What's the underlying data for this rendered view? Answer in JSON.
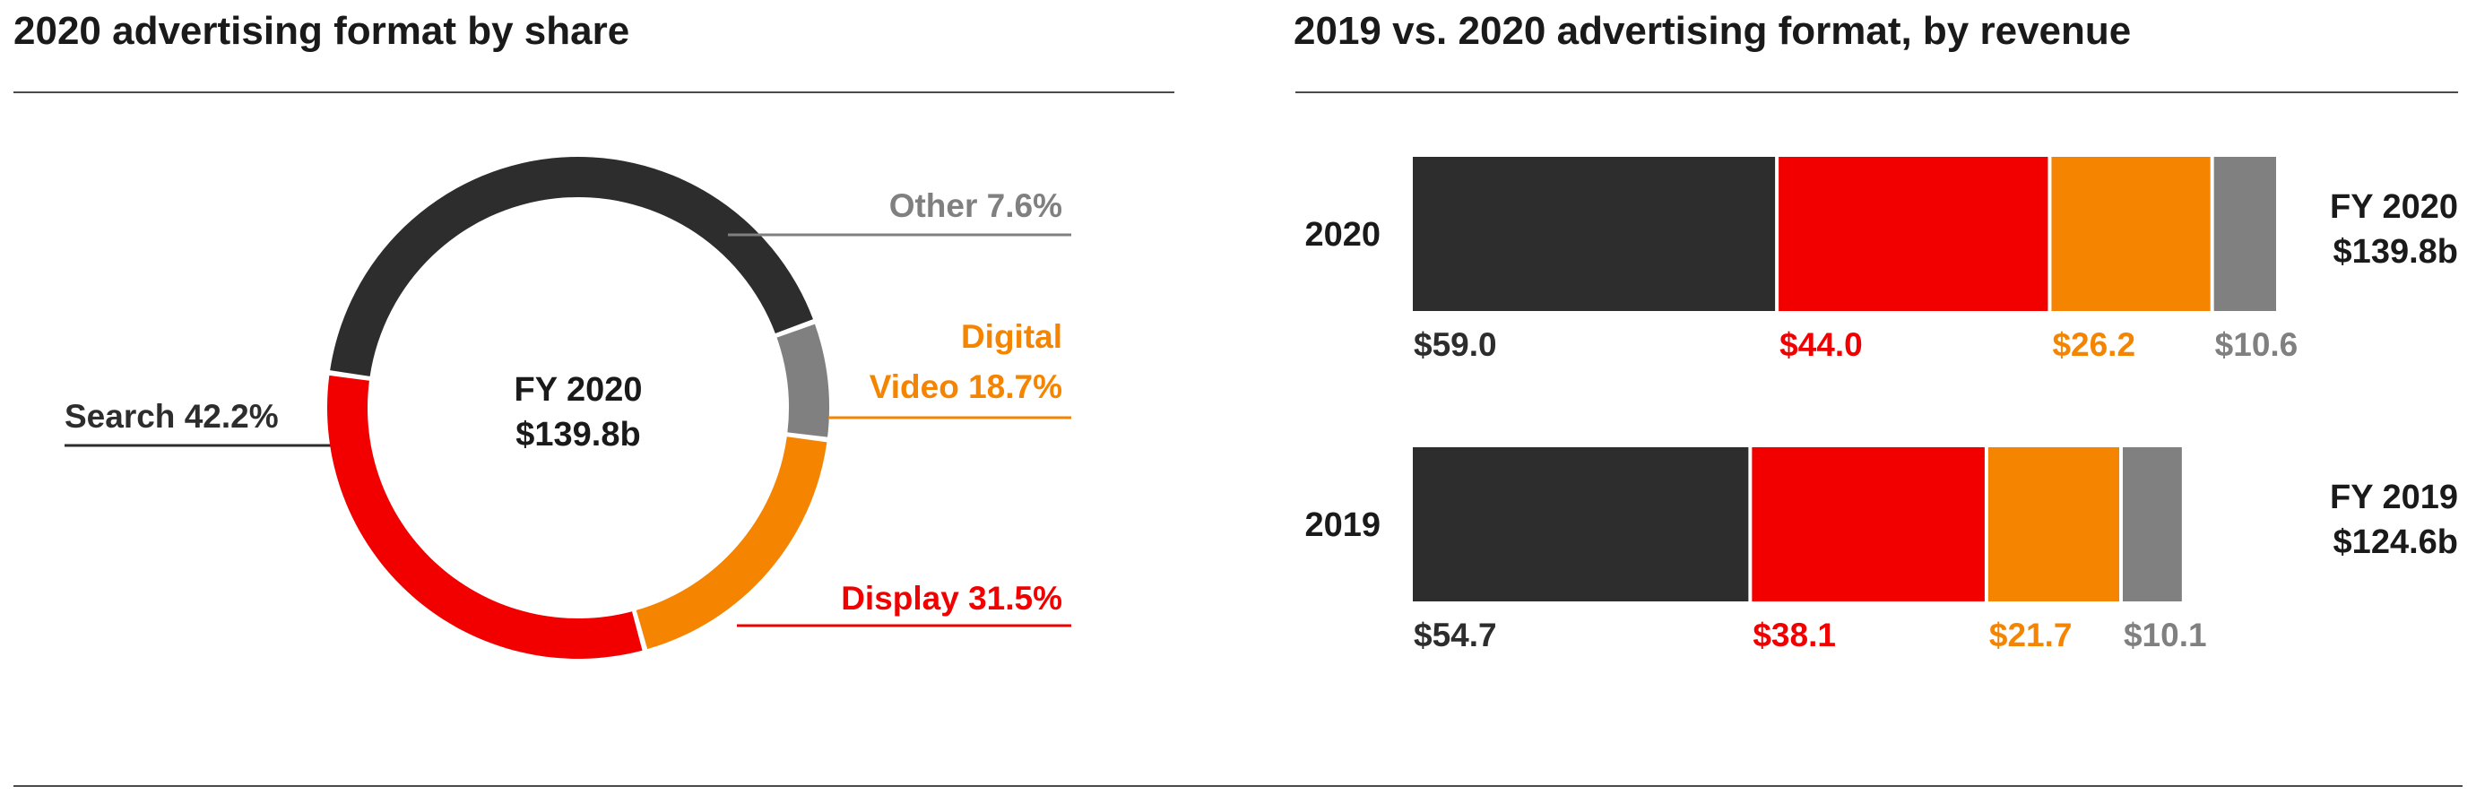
{
  "colors": {
    "search": "#2d2d2d",
    "display": "#f20000",
    "video": "#f58400",
    "other": "#808080"
  },
  "left_panel": {
    "title": "2020 advertising format by share"
  },
  "right_panel": {
    "title": "2019 vs. 2020 advertising format, by revenue"
  },
  "chart_data": [
    {
      "type": "pie",
      "title": "2020 advertising format by share",
      "center_label": [
        "FY 2020",
        "$139.8b"
      ],
      "slices": [
        {
          "label_lines": [
            "Search 42.2%"
          ],
          "value": 42.2,
          "color": "#2d2d2d"
        },
        {
          "label_lines": [
            "Other 7.6%"
          ],
          "value": 7.6,
          "color": "#808080"
        },
        {
          "label_lines": [
            "Digital",
            "Video 18.7%"
          ],
          "value": 18.7,
          "color": "#f58400"
        },
        {
          "label_lines": [
            "Display 31.5%"
          ],
          "value": 31.5,
          "color": "#f20000"
        }
      ]
    },
    {
      "type": "bar",
      "orientation": "horizontal",
      "stacked": true,
      "title": "2019 vs. 2020 advertising format, by revenue",
      "categories": [
        "2020",
        "2019"
      ],
      "series": [
        {
          "values": [
            59.0,
            54.7
          ],
          "labels": [
            "$59.0",
            "$54.7"
          ],
          "color": "#2d2d2d"
        },
        {
          "values": [
            44.0,
            38.1
          ],
          "labels": [
            "$44.0",
            "$38.1"
          ],
          "color": "#f20000"
        },
        {
          "values": [
            26.2,
            21.7
          ],
          "labels": [
            "$26.2",
            "$21.7"
          ],
          "color": "#f58400"
        },
        {
          "values": [
            10.6,
            10.1
          ],
          "labels": [
            "$10.6",
            "$10.1"
          ],
          "color": "#808080"
        }
      ],
      "totals": [
        {
          "lines": [
            "FY 2020",
            "$139.8b"
          ]
        },
        {
          "lines": [
            "FY 2019",
            "$124.6b"
          ]
        }
      ]
    }
  ]
}
